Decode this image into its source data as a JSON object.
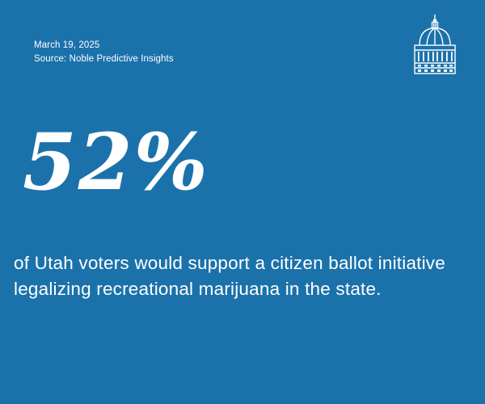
{
  "meta": {
    "date": "March 19, 2025",
    "source": "Source: Noble Predictive Insights"
  },
  "headline": {
    "stat": "52%",
    "description": "of Utah voters would support a citizen ballot initiative legalizing recreational marijuana in the state."
  },
  "logo": {
    "icon": "capitol-dome-icon"
  },
  "colors": {
    "background": "#1b72ab",
    "text": "#ffffff"
  }
}
